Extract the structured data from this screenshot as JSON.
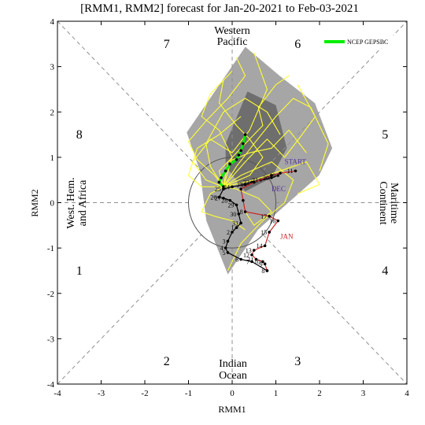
{
  "chart_data": {
    "type": "scatter",
    "title": "[RMM1, RMM2] forecast for Jan-20-2021 to Feb-03-2021",
    "xlabel": "RMM1",
    "ylabel": "RMM2",
    "xlim": [
      -4,
      4
    ],
    "ylim": [
      -4,
      4
    ],
    "xticks": [
      "-4",
      "-3",
      "-2",
      "-1",
      "0",
      "1",
      "2",
      "3",
      "4"
    ],
    "yticks": [
      "-4",
      "-3",
      "-2",
      "-1",
      "0",
      "1",
      "2",
      "3",
      "4"
    ],
    "phases": [
      {
        "label": "1",
        "x": -3.5,
        "y": -1.5
      },
      {
        "label": "2",
        "x": -1.5,
        "y": -3.5
      },
      {
        "label": "3",
        "x": 1.5,
        "y": -3.5
      },
      {
        "label": "4",
        "x": 3.5,
        "y": -1.5
      },
      {
        "label": "5",
        "x": 3.5,
        "y": 1.5
      },
      {
        "label": "6",
        "x": 1.5,
        "y": 3.5
      },
      {
        "label": "7",
        "x": -1.5,
        "y": 3.5
      },
      {
        "label": "8",
        "x": -3.5,
        "y": 1.5
      }
    ],
    "regions": {
      "top": [
        "Western",
        "Pacific"
      ],
      "bottom": [
        "Indian",
        "Ocean"
      ],
      "left": [
        "West. Hem.",
        "and Africa"
      ],
      "right": [
        "Maritime",
        "Continent"
      ]
    },
    "legend": [
      {
        "name": "NCEP GEPSBC",
        "color": "#00ee00"
      }
    ],
    "colors": {
      "ensemble": "#ffff33",
      "spread_outer": "#a6a6a6",
      "spread_inner": "#6e6e6e",
      "jan": "#cc2222",
      "dec": "#553399",
      "start": "#553399",
      "mean": "#00ee00"
    },
    "spread_outer": [
      [
        -0.8,
        1.9
      ],
      [
        0.3,
        3.45
      ],
      [
        1.1,
        2.8
      ],
      [
        1.9,
        2.2
      ],
      [
        2.3,
        1.2
      ],
      [
        2.0,
        0.6
      ],
      [
        0.6,
        -0.6
      ],
      [
        -0.1,
        -1.6
      ],
      [
        -0.6,
        -0.4
      ],
      [
        -0.75,
        0.7
      ],
      [
        -1.05,
        1.55
      ]
    ],
    "spread_inner": [
      [
        -0.15,
        1.3
      ],
      [
        0.35,
        2.45
      ],
      [
        1.0,
        2.15
      ],
      [
        1.25,
        1.2
      ],
      [
        0.9,
        0.55
      ],
      [
        0.3,
        0.25
      ],
      [
        -0.15,
        0.8
      ]
    ],
    "ensemble_members": [
      [
        [
          -0.2,
          0.35
        ],
        [
          -0.4,
          0.6
        ],
        [
          -0.8,
          0.95
        ],
        [
          -1.0,
          1.35
        ],
        [
          -0.6,
          1.8
        ],
        [
          -0.1,
          2.3
        ],
        [
          0.3,
          2.8
        ],
        [
          0.1,
          3.2
        ]
      ],
      [
        [
          -0.2,
          0.35
        ],
        [
          0.1,
          0.8
        ],
        [
          0.5,
          1.3
        ],
        [
          1.0,
          1.9
        ],
        [
          1.4,
          2.3
        ],
        [
          1.8,
          2.1
        ],
        [
          2.2,
          1.3
        ],
        [
          2.0,
          0.7
        ]
      ],
      [
        [
          -0.2,
          0.35
        ],
        [
          -0.6,
          0.5
        ],
        [
          -0.9,
          0.9
        ],
        [
          -0.5,
          1.4
        ],
        [
          0.0,
          1.1
        ],
        [
          0.4,
          1.6
        ],
        [
          0.8,
          2.5
        ],
        [
          0.5,
          3.3
        ]
      ],
      [
        [
          -0.2,
          0.35
        ],
        [
          0.2,
          0.6
        ],
        [
          0.9,
          0.9
        ],
        [
          1.4,
          0.5
        ],
        [
          1.2,
          0.0
        ],
        [
          0.7,
          -0.4
        ],
        [
          0.2,
          -0.9
        ],
        [
          -0.1,
          -1.5
        ]
      ],
      [
        [
          -0.2,
          0.35
        ],
        [
          -0.5,
          0.2
        ],
        [
          -0.7,
          -0.2
        ],
        [
          -0.4,
          -0.3
        ],
        [
          0.0,
          -0.4
        ],
        [
          0.3,
          -0.6
        ]
      ],
      [
        [
          -0.2,
          0.35
        ],
        [
          0.0,
          1.0
        ],
        [
          -0.3,
          1.6
        ],
        [
          -0.7,
          1.9
        ],
        [
          -0.5,
          2.4
        ],
        [
          0.0,
          2.9
        ]
      ],
      [
        [
          -0.2,
          0.35
        ],
        [
          0.3,
          0.9
        ],
        [
          0.8,
          1.4
        ],
        [
          1.2,
          1.0
        ],
        [
          1.6,
          1.5
        ],
        [
          1.9,
          1.9
        ],
        [
          1.5,
          2.6
        ]
      ],
      [
        [
          -0.2,
          0.35
        ],
        [
          -0.3,
          0.7
        ],
        [
          0.2,
          1.2
        ],
        [
          0.7,
          1.7
        ],
        [
          0.6,
          2.1
        ],
        [
          1.0,
          2.6
        ],
        [
          1.3,
          2.8
        ]
      ],
      [
        [
          -0.2,
          0.35
        ],
        [
          -0.7,
          0.35
        ],
        [
          -1.0,
          0.6
        ],
        [
          -0.8,
          1.2
        ],
        [
          -0.3,
          1.5
        ],
        [
          0.2,
          1.9
        ]
      ],
      [
        [
          -0.2,
          0.35
        ],
        [
          0.5,
          0.5
        ],
        [
          1.1,
          0.7
        ],
        [
          1.7,
          0.9
        ],
        [
          2.0,
          0.4
        ],
        [
          1.5,
          0.2
        ]
      ],
      [
        [
          -0.2,
          0.35
        ],
        [
          0.1,
          0.3
        ],
        [
          0.6,
          0.1
        ],
        [
          0.9,
          -0.2
        ],
        [
          0.5,
          -0.5
        ],
        [
          0.3,
          -0.2
        ]
      ],
      [
        [
          -0.2,
          0.35
        ],
        [
          -0.1,
          0.9
        ],
        [
          0.4,
          1.1
        ],
        [
          0.9,
          1.2
        ],
        [
          1.3,
          1.6
        ],
        [
          1.7,
          1.1
        ]
      ],
      [
        [
          -0.2,
          0.35
        ],
        [
          -0.5,
          0.8
        ],
        [
          -0.6,
          1.3
        ],
        [
          -0.2,
          2.0
        ],
        [
          0.3,
          2.3
        ],
        [
          0.8,
          2.0
        ],
        [
          1.1,
          1.5
        ]
      ],
      [
        [
          -0.2,
          0.35
        ],
        [
          0.4,
          0.6
        ],
        [
          0.7,
          1.0
        ],
        [
          0.4,
          1.4
        ],
        [
          0.1,
          1.7
        ],
        [
          -0.3,
          2.2
        ],
        [
          -0.2,
          2.7
        ]
      ]
    ],
    "observed_jan": [
      {
        "x": 1.45,
        "y": 0.7,
        "label": "11"
      },
      {
        "x": 1.1,
        "y": 0.65,
        "label": ""
      },
      {
        "x": 0.9,
        "y": 0.6,
        "label": ""
      },
      {
        "x": 0.5,
        "y": 0.45,
        "label": ""
      },
      {
        "x": 0.2,
        "y": 0.3,
        "label": ""
      },
      {
        "x": 0.25,
        "y": 0.05,
        "label": ""
      },
      {
        "x": 0.3,
        "y": -0.2,
        "label": "18"
      },
      {
        "x": 0.85,
        "y": -0.3,
        "label": "17"
      },
      {
        "x": 1.05,
        "y": -0.4,
        "label": "16"
      },
      {
        "x": 0.85,
        "y": -0.65,
        "label": "15"
      },
      {
        "x": 0.75,
        "y": -0.95,
        "label": "14"
      },
      {
        "x": 0.5,
        "y": -1.05,
        "label": "13"
      },
      {
        "x": 0.45,
        "y": -1.15,
        "label": "12"
      },
      {
        "x": 0.55,
        "y": -1.25,
        "label": "11"
      },
      {
        "x": 0.7,
        "y": -1.3,
        "label": "10"
      },
      {
        "x": 0.75,
        "y": -1.35,
        "label": "9"
      },
      {
        "x": 0.8,
        "y": -1.5,
        "label": "8"
      }
    ],
    "observed_dec": [
      {
        "x": 0.8,
        "y": -1.5,
        "label": ""
      },
      {
        "x": 0.45,
        "y": -1.3,
        "label": "7"
      },
      {
        "x": 0.2,
        "y": -1.25,
        "label": "6"
      },
      {
        "x": -0.1,
        "y": -1.1,
        "label": "5"
      },
      {
        "x": -0.15,
        "y": -1.0,
        "label": "4"
      },
      {
        "x": -0.1,
        "y": -0.85,
        "label": "3"
      },
      {
        "x": 0.0,
        "y": -0.65,
        "label": "2"
      },
      {
        "x": 0.1,
        "y": -0.55,
        "label": "1"
      },
      {
        "x": 0.2,
        "y": -0.45,
        "label": "31"
      },
      {
        "x": 0.15,
        "y": -0.25,
        "label": "30"
      },
      {
        "x": 0.1,
        "y": -0.05,
        "label": "29"
      },
      {
        "x": -0.05,
        "y": 0.05,
        "label": "28"
      },
      {
        "x": -0.2,
        "y": 0.1,
        "label": "27"
      },
      {
        "x": -0.3,
        "y": 0.12,
        "label": "26"
      },
      {
        "x": -0.2,
        "y": 0.3,
        "label": "25"
      },
      {
        "x": 0.0,
        "y": 0.35,
        "label": "24"
      },
      {
        "x": 0.3,
        "y": 0.4,
        "label": "23"
      },
      {
        "x": 0.45,
        "y": 0.45,
        "label": "22"
      },
      {
        "x": 0.65,
        "y": 0.5,
        "label": "21"
      },
      {
        "x": 0.9,
        "y": 0.55,
        "label": "20"
      },
      {
        "x": 1.05,
        "y": 0.6,
        "label": "19"
      }
    ],
    "ensemble_mean": [
      {
        "x": -0.2,
        "y": 0.35
      },
      {
        "x": -0.3,
        "y": 0.45
      },
      {
        "x": -0.25,
        "y": 0.55
      },
      {
        "x": -0.15,
        "y": 0.7
      },
      {
        "x": -0.05,
        "y": 0.85
      },
      {
        "x": 0.1,
        "y": 0.95
      },
      {
        "x": 0.15,
        "y": 1.05
      },
      {
        "x": 0.2,
        "y": 1.15
      },
      {
        "x": 0.25,
        "y": 1.3
      },
      {
        "x": 0.3,
        "y": 1.5
      }
    ],
    "month_labels": [
      {
        "text": "START",
        "x": 1.2,
        "y": 0.85,
        "key": "start"
      },
      {
        "text": "DEC",
        "x": 0.9,
        "y": 0.25,
        "key": "dec"
      },
      {
        "text": "JAN",
        "x": 1.1,
        "y": -0.8,
        "key": "jan"
      }
    ]
  }
}
